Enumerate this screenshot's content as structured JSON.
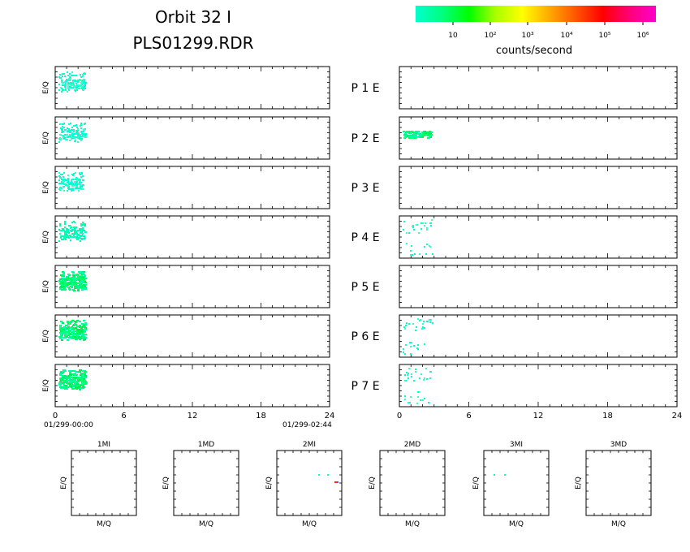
{
  "title": {
    "line1": "Orbit  32  I",
    "line2": "PLS01299.RDR"
  },
  "colorbar": {
    "label": "counts/second",
    "ticks": [
      "10",
      "10²",
      "10³",
      "10⁴",
      "10⁵",
      "10⁶"
    ],
    "colors": [
      "#00ffcc",
      "#00ff7f",
      "#00ff00",
      "#aaff00",
      "#ffff00",
      "#ffaa00",
      "#ff5500",
      "#ff0000",
      "#ff0077",
      "#ff00cc"
    ]
  },
  "x_axis": {
    "ticks": [
      "0",
      "6",
      "12",
      "18",
      "24"
    ],
    "start_label": "01/299-00:00",
    "end_label": "01/299-02:44"
  },
  "ylabel": "E/Q",
  "channel_labels": [
    "P  1  E",
    "P  2  E",
    "P  3  E",
    "P  4  E",
    "P  5  E",
    "P  6  E",
    "P  7  E"
  ],
  "bottom_panels": {
    "titles": [
      "1MI",
      "1MD",
      "2MI",
      "2MD",
      "3MI",
      "3MD"
    ],
    "xlabel": "M/Q",
    "ylabel": "E/Q"
  },
  "chart_data": {
    "type": "heatmap",
    "x_units": "hours",
    "xlim": [
      0,
      24
    ],
    "ion_activity": [
      {
        "panel": "P1",
        "x_range": [
          0.0,
          2.6
        ],
        "level": "low"
      },
      {
        "panel": "P2",
        "x_range": [
          0.0,
          2.6
        ],
        "level": "low"
      },
      {
        "panel": "P3",
        "x_range": [
          0.0,
          2.4
        ],
        "level": "low"
      },
      {
        "panel": "P4",
        "x_range": [
          0.0,
          2.6
        ],
        "level": "low-moderate"
      },
      {
        "panel": "P5",
        "x_range": [
          0.0,
          2.6
        ],
        "level": "moderate"
      },
      {
        "panel": "P6",
        "x_range": [
          0.0,
          2.6
        ],
        "level": "moderate"
      },
      {
        "panel": "P7",
        "x_range": [
          0.0,
          2.6
        ],
        "level": "moderate"
      }
    ],
    "electron_activity": [
      {
        "panel": "P2",
        "x_range": [
          0.0,
          2.8
        ],
        "level": "moderate"
      },
      {
        "panel": "P4",
        "x_range": [
          0.0,
          2.8
        ],
        "level": "low"
      },
      {
        "panel": "P6",
        "x_range": [
          0.0,
          2.8
        ],
        "level": "low"
      },
      {
        "panel": "P7",
        "x_range": [
          0.0,
          2.8
        ],
        "level": "low"
      }
    ]
  }
}
